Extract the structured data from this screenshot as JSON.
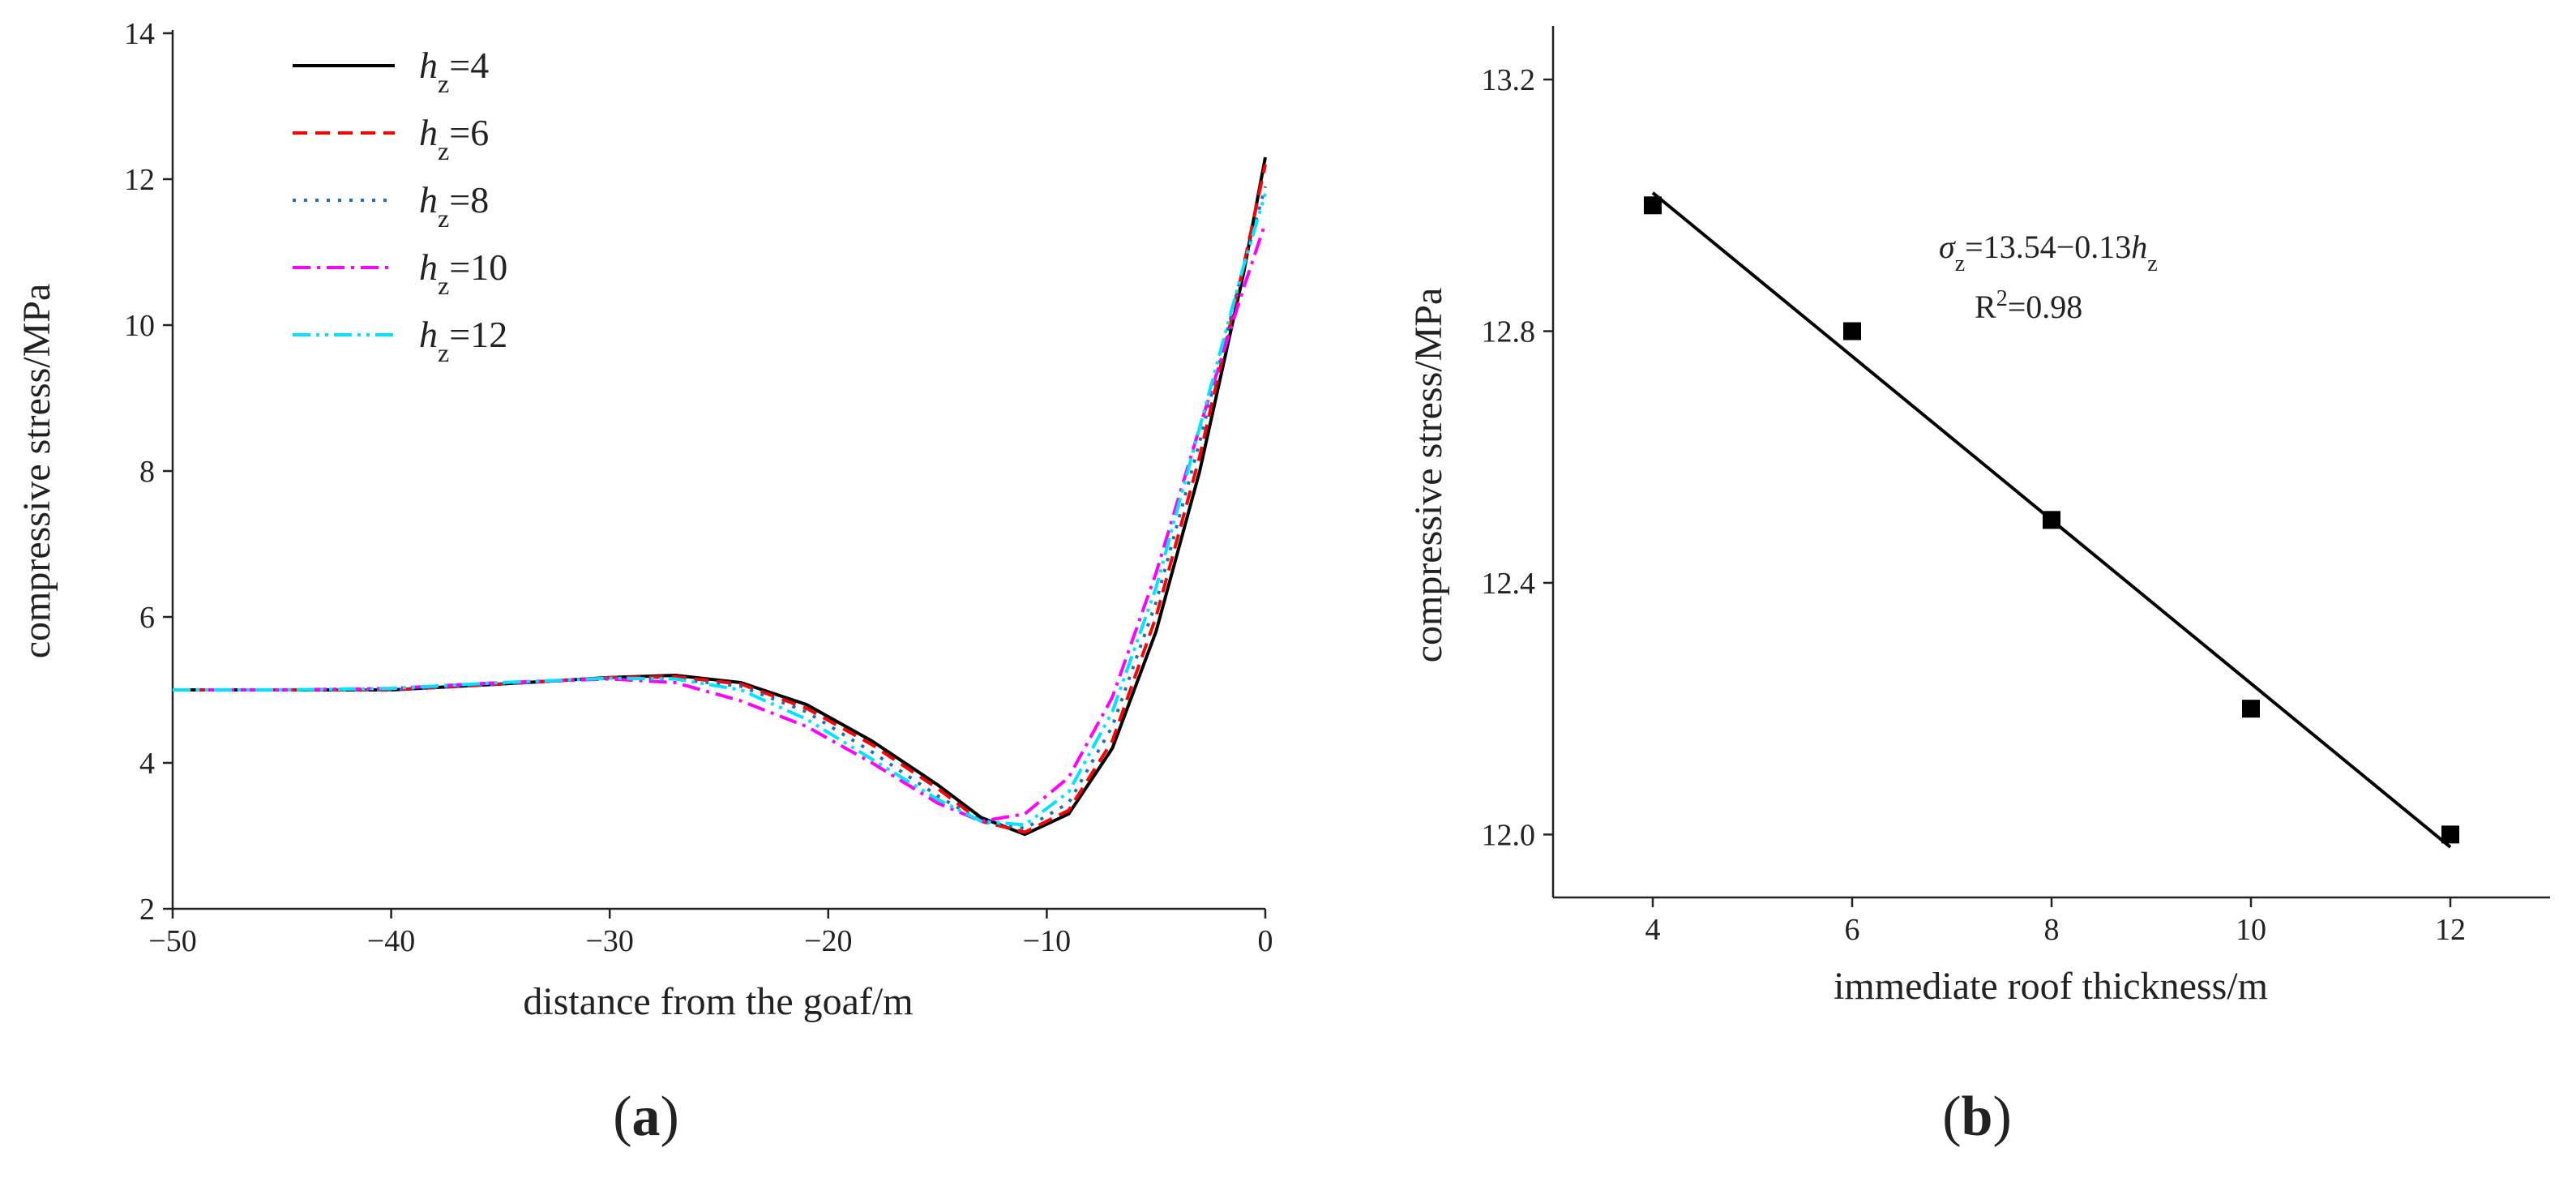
{
  "chart_data": [
    {
      "type": "line",
      "xlabel": "distance from the goaf/m",
      "ylabel": "compressive stress/MPa",
      "panel_label": "(a)",
      "x": [
        -50,
        -45,
        -40,
        -35,
        -30,
        -27,
        -24,
        -21,
        -18,
        -15,
        -13,
        -11,
        -9,
        -7,
        -5,
        -3,
        -1,
        0
      ],
      "series": [
        {
          "name": "hz=4",
          "color": "#000000",
          "style": "solid",
          "values": [
            5.0,
            5.0,
            5.0,
            5.08,
            5.17,
            5.2,
            5.1,
            4.8,
            4.3,
            3.7,
            3.25,
            3.02,
            3.3,
            4.2,
            5.8,
            8.0,
            10.7,
            12.3
          ]
        },
        {
          "name": "hz=6",
          "color": "#ff0000",
          "style": "dashed",
          "values": [
            5.0,
            5.0,
            5.0,
            5.08,
            5.17,
            5.18,
            5.08,
            4.75,
            4.25,
            3.65,
            3.2,
            3.05,
            3.35,
            4.3,
            6.0,
            8.2,
            10.8,
            12.2
          ]
        },
        {
          "name": "hz=8",
          "color": "#1f6fc0",
          "style": "dotted",
          "values": [
            5.0,
            5.0,
            5.0,
            5.08,
            5.16,
            5.15,
            5.05,
            4.7,
            4.15,
            3.55,
            3.2,
            3.1,
            3.45,
            4.5,
            6.2,
            8.4,
            10.8,
            11.9
          ]
        },
        {
          "name": "hz=10",
          "color": "#ff00ff",
          "style": "dashdot",
          "values": [
            5.0,
            5.0,
            5.02,
            5.1,
            5.15,
            5.1,
            4.85,
            4.5,
            4.0,
            3.45,
            3.2,
            3.3,
            3.8,
            4.9,
            6.6,
            8.6,
            10.5,
            11.4
          ]
        },
        {
          "name": "hz=12",
          "color": "#00e5ff",
          "style": "dashdotdot",
          "values": [
            5.0,
            5.0,
            5.02,
            5.1,
            5.16,
            5.15,
            5.0,
            4.6,
            4.05,
            3.5,
            3.2,
            3.15,
            3.6,
            4.7,
            6.4,
            8.6,
            10.8,
            11.8
          ]
        }
      ],
      "xlim": [
        -50,
        0
      ],
      "ylim": [
        2,
        14
      ],
      "xticks": [
        {
          "value": -50,
          "label": "−50"
        },
        {
          "value": -40,
          "label": "−40"
        },
        {
          "value": -30,
          "label": "−30"
        },
        {
          "value": -20,
          "label": "−20"
        },
        {
          "value": -10,
          "label": "−10"
        },
        0
      ],
      "yticks": [
        2,
        4,
        6,
        8,
        10,
        12,
        14
      ],
      "legend": "upper left"
    },
    {
      "type": "scatter",
      "xlabel": "immediate roof thickness/m",
      "ylabel": "compressive stress/MPa",
      "panel_label": "(b)",
      "annotations": [
        [
          "σ",
          "z",
          "=13.54−0.13",
          "h",
          "z"
        ],
        [
          "R",
          "2",
          "=0.98"
        ]
      ],
      "series": [
        {
          "type": "scatter",
          "color": "#000000",
          "x": [
            4,
            6,
            8,
            10,
            12
          ],
          "values": [
            13.0,
            12.8,
            12.5,
            12.2,
            12.0
          ]
        },
        {
          "type": "line",
          "color": "#000000",
          "x": [
            4,
            12
          ],
          "values": [
            13.02,
            11.98
          ]
        }
      ],
      "xlim": [
        3,
        13
      ],
      "ylim": [
        11.9,
        13.28
      ],
      "xticks": [
        4,
        6,
        8,
        10,
        12
      ],
      "yticks": [
        {
          "value": 12,
          "label": "12.0"
        },
        12.4,
        12.8,
        13.2
      ]
    }
  ]
}
